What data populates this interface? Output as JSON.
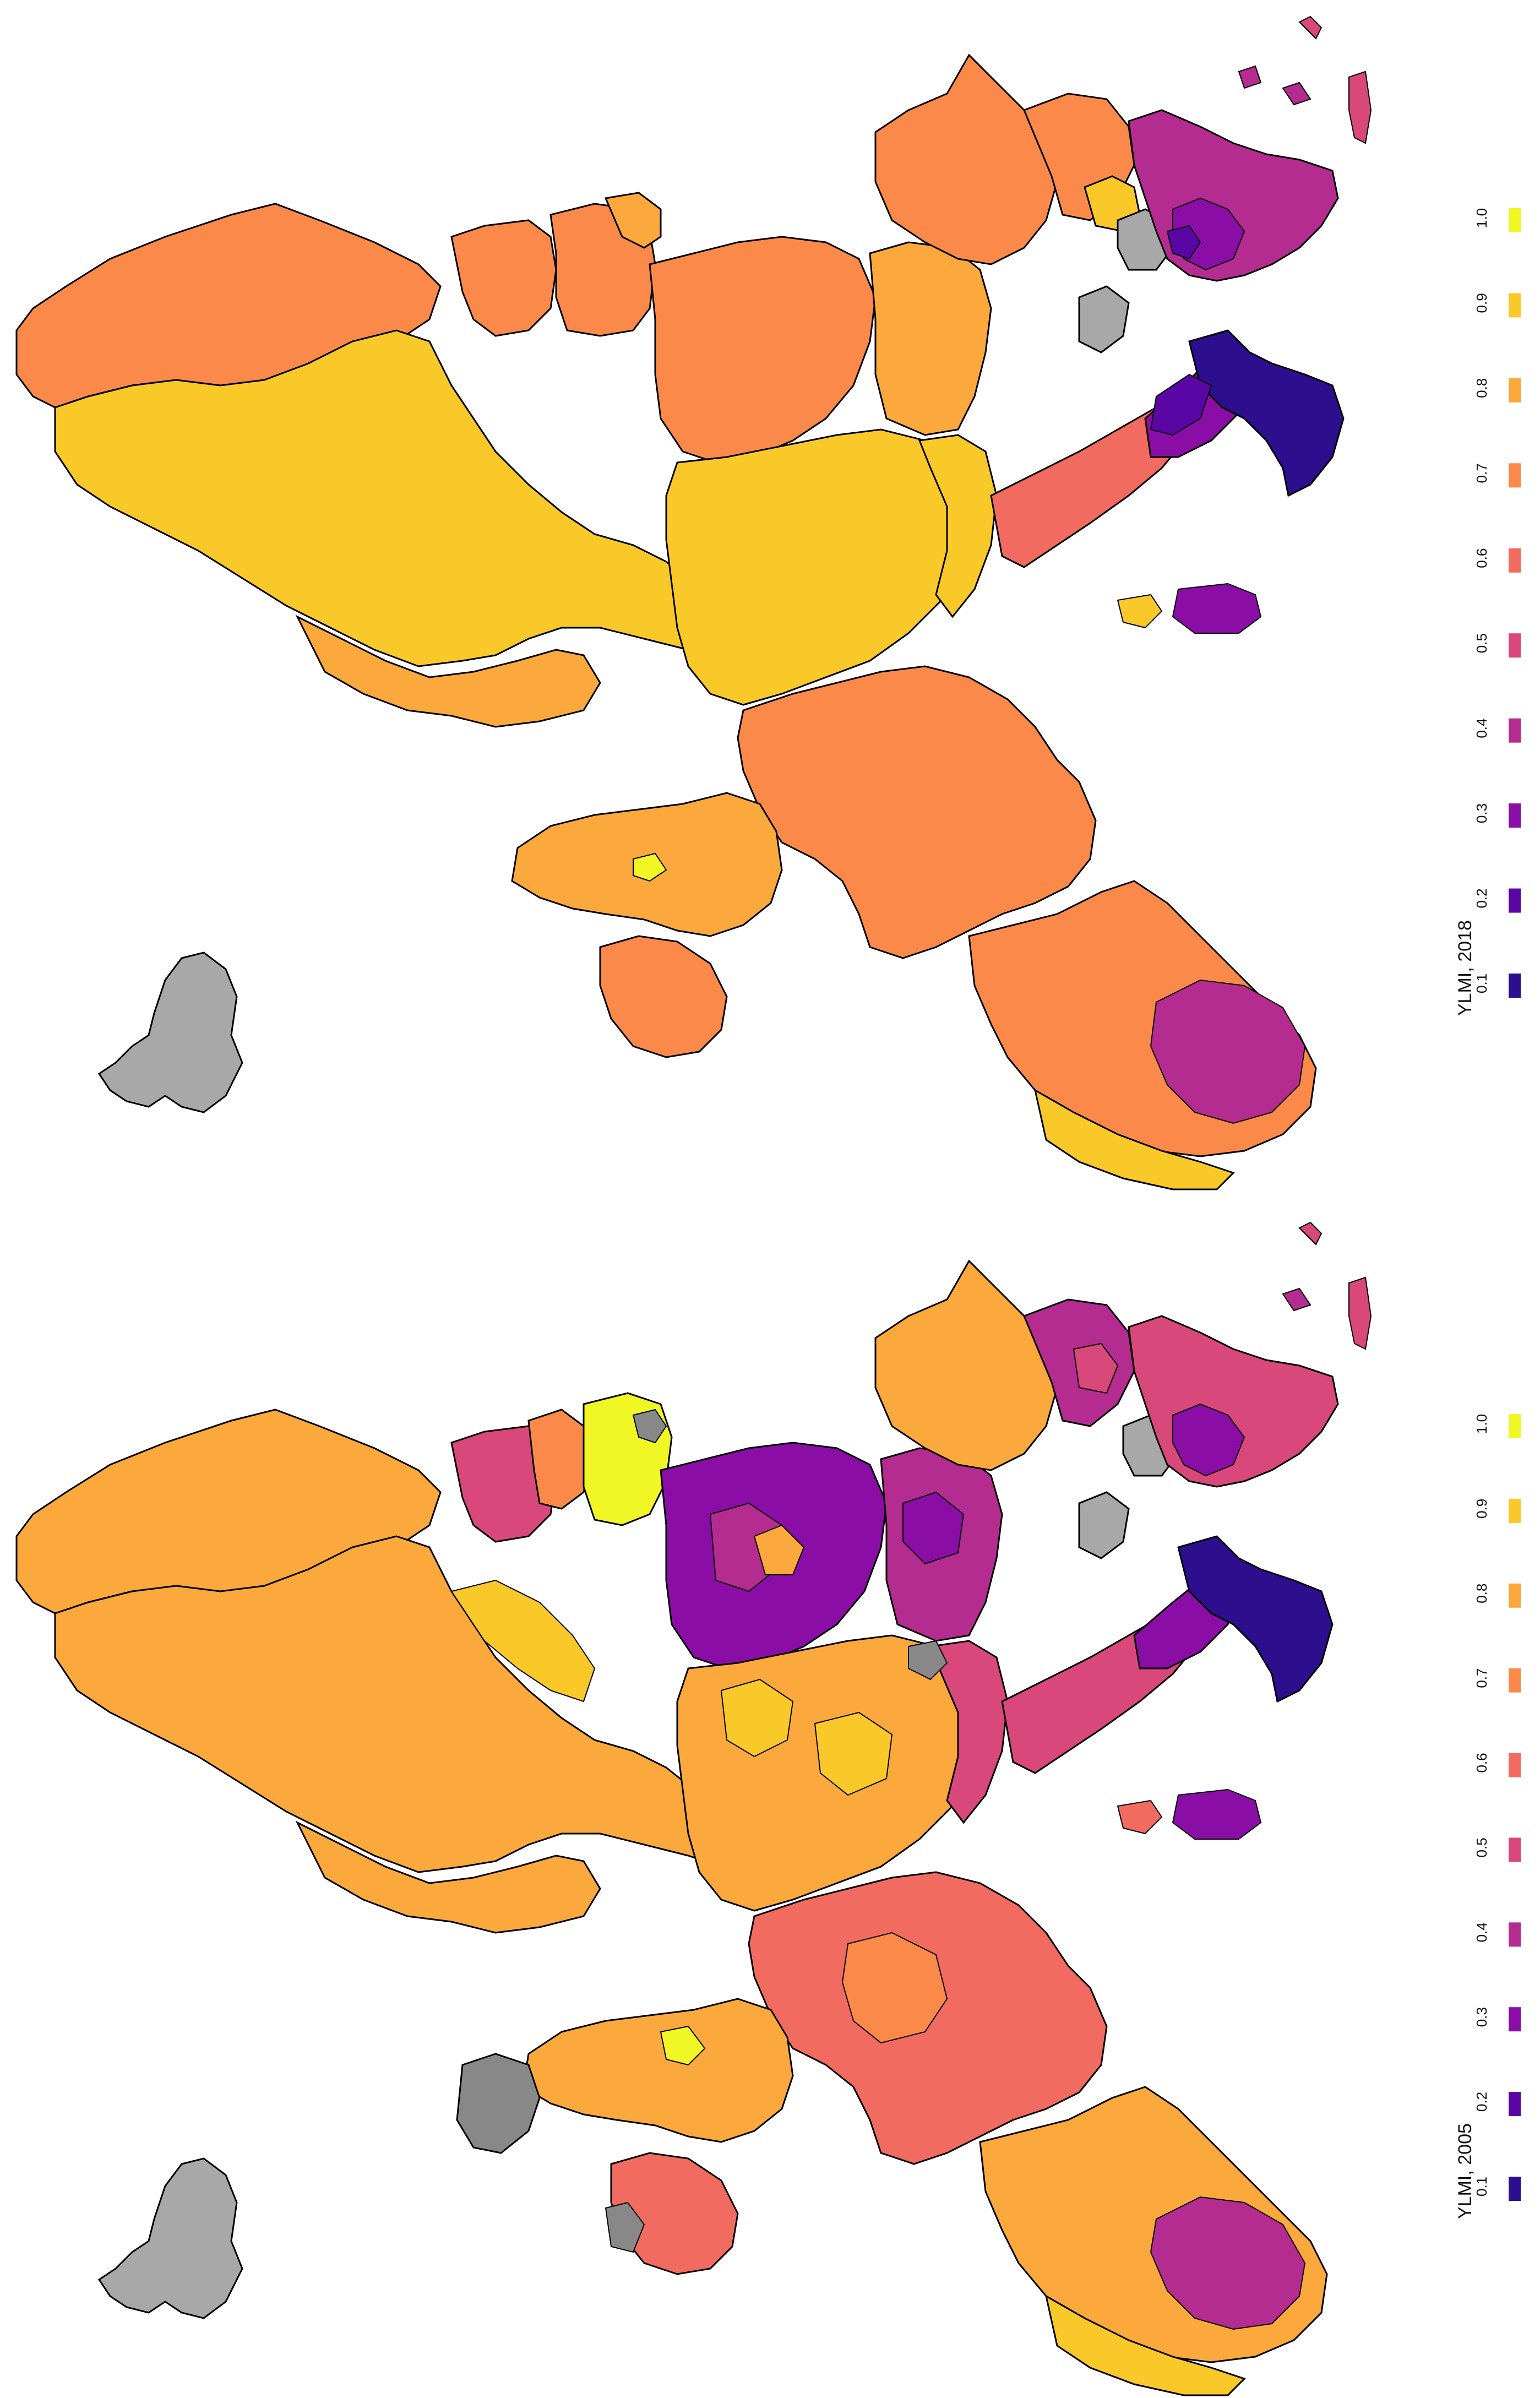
{
  "colorscale": [
    {
      "value": "0.1",
      "color": "#2d0e8d"
    },
    {
      "value": "0.2",
      "color": "#5a06a4"
    },
    {
      "value": "0.3",
      "color": "#8a0ea5"
    },
    {
      "value": "0.4",
      "color": "#b42c8f"
    },
    {
      "value": "0.5",
      "color": "#d8487a"
    },
    {
      "value": "0.6",
      "color": "#f26b60"
    },
    {
      "value": "0.7",
      "color": "#fb8a4a"
    },
    {
      "value": "0.8",
      "color": "#fba83c"
    },
    {
      "value": "0.9",
      "color": "#f9c92a"
    },
    {
      "value": "1.0",
      "color": "#f0f724"
    }
  ],
  "missing_color": "#a8a8a8",
  "maps": [
    {
      "id": "2018",
      "legend_title": "YLMI, 2018"
    },
    {
      "id": "2005",
      "legend_title": "YLMI, 2005"
    }
  ]
}
